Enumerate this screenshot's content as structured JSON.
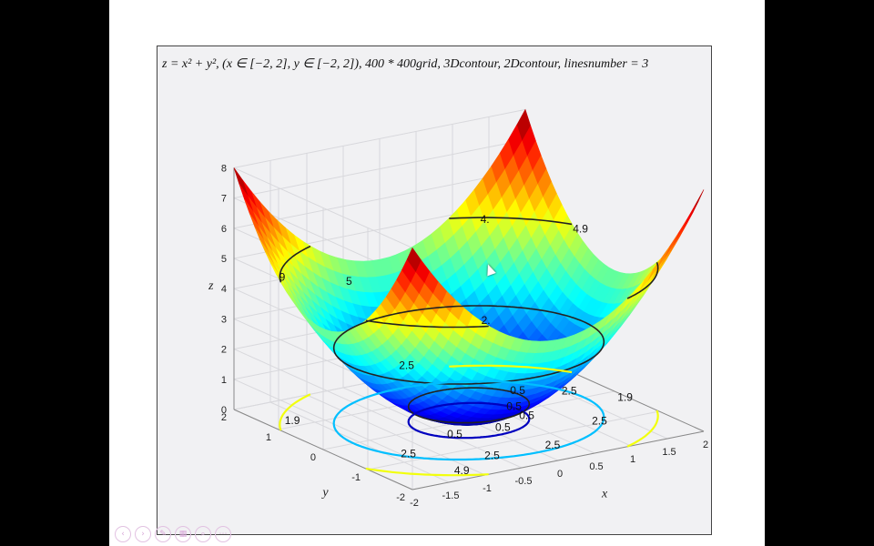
{
  "slide": {
    "nav_icons": [
      "prev-icon",
      "next-icon",
      "pen-icon",
      "grid-icon",
      "search-icon",
      "more-icon"
    ],
    "nav_glyphs": [
      "‹",
      "›",
      "✎",
      "▦",
      "⌕",
      "⋯"
    ]
  },
  "chart_data": {
    "type": "surface",
    "title": "z = x² + y², (x ∈ [−2, 2], y ∈ [−2, 2]), 400 * 400grid, 3Dcontour, 2Dcontour, linesnumber = 3",
    "function": "x^2 + y^2",
    "xlabel": "x",
    "ylabel": "y",
    "zlabel": "z",
    "xlim": [
      -2,
      2
    ],
    "ylim": [
      -2,
      2
    ],
    "zlim": [
      0,
      8
    ],
    "xticks": [
      "-2",
      "-1.5",
      "-1",
      "-0.5",
      "0",
      "0.5",
      "1",
      "1.5",
      "2"
    ],
    "yticks": [
      "-2",
      "-1",
      "0",
      "1",
      "2"
    ],
    "zticks": [
      "0",
      "1",
      "2",
      "3",
      "4",
      "5",
      "6",
      "7",
      "8"
    ],
    "grid": true,
    "colormap": "jet",
    "colors": {
      "low": "#00008f",
      "mid": "#19e6c8",
      "high": "#800000",
      "axes_background": "#f1f1f3"
    },
    "contour_levels_3d": [
      0.5,
      2.5,
      4.9
    ],
    "contour_labels_3d": [
      "0.5",
      "2.",
      "2.5",
      "4.",
      "4.9",
      "5",
      "9"
    ],
    "contour_levels_2d": [
      0.5,
      2.5,
      4.9
    ],
    "contour_labels_2d": [
      "0.5",
      "0.5",
      "0.5",
      "0.5",
      "2.5",
      "2.5",
      "2.5",
      "2.5",
      "2.5",
      "4.9",
      "1.9",
      "1.9"
    ]
  }
}
